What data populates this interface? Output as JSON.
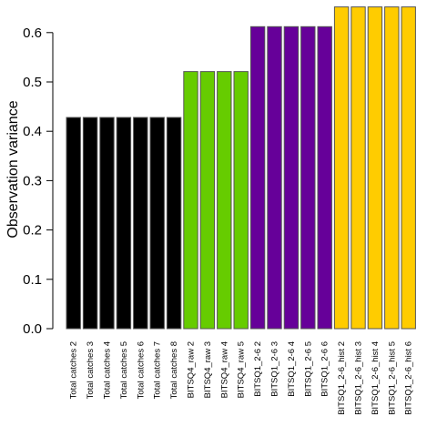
{
  "chart_data": {
    "type": "bar",
    "title": "",
    "xlabel": "",
    "ylabel": "Observation variance",
    "ylim": [
      0,
      0.65
    ],
    "yticks": [
      "0.0",
      "0.1",
      "0.2",
      "0.3",
      "0.4",
      "0.5",
      "0.6"
    ],
    "grid": false,
    "categories": [
      "Total catches 2",
      "Total catches 3",
      "Total catches 4",
      "Total catches 5",
      "Total catches 6",
      "Total catches 7",
      "Total catches 8",
      "BITSQ4_raw 2",
      "BITSQ4_raw 3",
      "BITSQ4_raw 4",
      "BITSQ4_raw 5",
      "BITSQ1_2-6 2",
      "BITSQ1_2-6 3",
      "BITSQ1_2-6 4",
      "BITSQ1_2-6 5",
      "BITSQ1_2-6 6",
      "BITSQ1_2-6_hist 2",
      "BITSQ1_2-6_hist 3",
      "BITSQ1_2-6_hist 4",
      "BITSQ1_2-6_hist 5",
      "BITSQ1_2-6_hist 6"
    ],
    "values": [
      0.428,
      0.428,
      0.428,
      0.428,
      0.428,
      0.428,
      0.428,
      0.521,
      0.521,
      0.521,
      0.521,
      0.612,
      0.612,
      0.612,
      0.612,
      0.612,
      0.652,
      0.652,
      0.652,
      0.652,
      0.652
    ],
    "bar_colors": [
      "#000000",
      "#000000",
      "#000000",
      "#000000",
      "#000000",
      "#000000",
      "#000000",
      "#66CC00",
      "#66CC00",
      "#66CC00",
      "#66CC00",
      "#660099",
      "#660099",
      "#660099",
      "#660099",
      "#660099",
      "#FFCC00",
      "#FFCC00",
      "#FFCC00",
      "#FFCC00",
      "#FFCC00"
    ],
    "bar_border_color": "#555555"
  }
}
